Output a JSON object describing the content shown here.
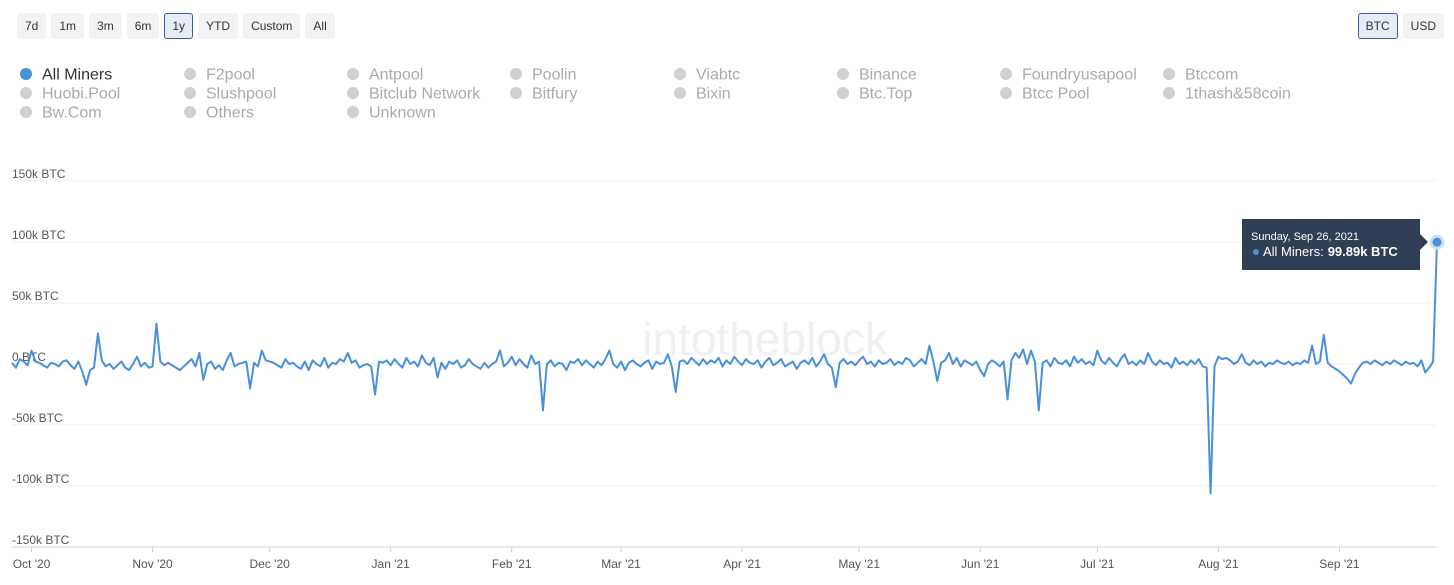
{
  "controls": {
    "ranges": [
      "7d",
      "1m",
      "3m",
      "6m",
      "1y",
      "YTD",
      "Custom",
      "All"
    ],
    "active_range": "1y",
    "units": [
      "BTC",
      "USD"
    ],
    "active_unit": "BTC"
  },
  "chart_data": {
    "type": "line",
    "watermark": "intotheblock",
    "categories": [
      null,
      null,
      null,
      null,
      null,
      "Oct '20",
      null,
      null,
      null,
      null,
      null,
      null,
      null,
      null,
      null,
      null,
      null,
      null,
      null,
      null,
      null,
      null,
      null,
      null,
      null,
      null,
      null,
      null,
      null,
      null,
      null,
      null,
      null,
      null,
      null,
      null,
      "Nov '20",
      null,
      null,
      null,
      null,
      null,
      null,
      null,
      null,
      null,
      null,
      null,
      null,
      null,
      null,
      null,
      null,
      null,
      null,
      null,
      null,
      null,
      null,
      null,
      null,
      null,
      null,
      null,
      null,
      null,
      "Dec '20",
      null,
      null,
      null,
      null,
      null,
      null,
      null,
      null,
      null,
      null,
      null,
      null,
      null,
      null,
      null,
      null,
      null,
      null,
      null,
      null,
      null,
      null,
      null,
      null,
      null,
      null,
      null,
      null,
      null,
      null,
      "Jan '21",
      null,
      null,
      null,
      null,
      null,
      null,
      null,
      null,
      null,
      null,
      null,
      null,
      null,
      null,
      null,
      null,
      null,
      null,
      null,
      null,
      null,
      null,
      null,
      null,
      null,
      null,
      null,
      null,
      null,
      null,
      "Feb '21",
      null,
      null,
      null,
      null,
      null,
      null,
      null,
      null,
      null,
      null,
      null,
      null,
      null,
      null,
      null,
      null,
      null,
      null,
      null,
      null,
      null,
      null,
      null,
      null,
      null,
      null,
      null,
      "Mar '21",
      null,
      null,
      null,
      null,
      null,
      null,
      null,
      null,
      null,
      null,
      null,
      null,
      null,
      null,
      null,
      null,
      null,
      null,
      null,
      null,
      null,
      null,
      null,
      null,
      null,
      null,
      null,
      null,
      null,
      null,
      "Apr '21",
      null,
      null,
      null,
      null,
      null,
      null,
      null,
      null,
      null,
      null,
      null,
      null,
      null,
      null,
      null,
      null,
      null,
      null,
      null,
      null,
      null,
      null,
      null,
      null,
      null,
      null,
      null,
      null,
      null,
      "May '21",
      null,
      null,
      null,
      null,
      null,
      null,
      null,
      null,
      null,
      null,
      null,
      null,
      null,
      null,
      null,
      null,
      null,
      null,
      null,
      null,
      null,
      null,
      null,
      null,
      null,
      null,
      null,
      null,
      null,
      null,
      "Jun '21",
      null,
      null,
      null,
      null,
      null,
      null,
      null,
      null,
      null,
      null,
      null,
      null,
      null,
      null,
      null,
      null,
      null,
      null,
      null,
      null,
      null,
      null,
      null,
      null,
      null,
      null,
      null,
      null,
      null,
      "Jul '21",
      null,
      null,
      null,
      null,
      null,
      null,
      null,
      null,
      null,
      null,
      null,
      null,
      null,
      null,
      null,
      null,
      null,
      null,
      null,
      null,
      null,
      null,
      null,
      null,
      null,
      null,
      null,
      null,
      null,
      null,
      "Aug '21",
      null,
      null,
      null,
      null,
      null,
      null,
      null,
      null,
      null,
      null,
      null,
      null,
      null,
      null,
      null,
      null,
      null,
      null,
      null,
      null,
      null,
      null,
      null,
      null,
      null,
      null,
      null,
      null,
      null,
      null,
      "Sep '21",
      null,
      null,
      null,
      null,
      null,
      null,
      null,
      null,
      null,
      null,
      null,
      null,
      null,
      null,
      null,
      null,
      null,
      null,
      null,
      null,
      null,
      null,
      null,
      null,
      null
    ],
    "series": [
      {
        "name": "All Miners",
        "color": "#4a90d9",
        "values": [
          1000,
          -3000,
          4000,
          2000,
          -1000,
          11000,
          2000,
          1000,
          -1000,
          -3000,
          1000,
          0,
          -2000,
          2000,
          3000,
          -1000,
          -4000,
          2000,
          -6000,
          -17000,
          -5000,
          -3000,
          25000,
          3000,
          -2000,
          0,
          -4000,
          -1000,
          2000,
          -3000,
          -5000,
          0,
          6000,
          -2000,
          1000,
          -3000,
          -2000,
          33000,
          2000,
          -1000,
          1000,
          -1000,
          -3000,
          -5000,
          -2000,
          1000,
          4000,
          -2000,
          9000,
          -13000,
          0,
          2000,
          -4000,
          -1000,
          -5000,
          3000,
          9000,
          -2000,
          0,
          1000,
          2000,
          -20000,
          1000,
          -2000,
          11000,
          3000,
          2000,
          1000,
          -1000,
          -3000,
          4000,
          0,
          1000,
          -2000,
          -4000,
          2000,
          -5000,
          3000,
          0,
          -2000,
          5000,
          -3000,
          1000,
          0,
          4000,
          2000,
          9000,
          1000,
          3000,
          -3000,
          -1000,
          0,
          -2000,
          -25000,
          2000,
          1000,
          3000,
          -1000,
          4000,
          0,
          -3000,
          5000,
          0,
          2000,
          -2000,
          7000,
          1000,
          -1000,
          5000,
          -11000,
          1000,
          -4000,
          2000,
          0,
          3000,
          -3000,
          -1000,
          4000,
          0,
          -2000,
          -4000,
          1000,
          -3000,
          0,
          2000,
          11000,
          -2000,
          1000,
          6000,
          -1000,
          4000,
          0,
          -3000,
          7000,
          0,
          2000,
          -38000,
          0,
          3000,
          -2000,
          1000,
          0,
          -5000,
          2000,
          1000,
          4000,
          -1000,
          3000,
          0,
          -3000,
          2000,
          -1000,
          4000,
          11000,
          0,
          -3000,
          2000,
          -5000,
          1000,
          3000,
          0,
          -2000,
          1000,
          3000,
          -4000,
          2000,
          0,
          1000,
          8000,
          -2000,
          -23000,
          2000,
          3000,
          0,
          5000,
          2000,
          -1000,
          4000,
          0,
          3000,
          1000,
          5000,
          -2000,
          3000,
          0,
          6000,
          2000,
          -1000,
          4000,
          1000,
          0,
          3000,
          -3000,
          2000,
          5000,
          -1000,
          1000,
          4000,
          -2000,
          0,
          2000,
          -4000,
          1000,
          3000,
          0,
          5000,
          -2000,
          2000,
          8000,
          0,
          -3000,
          -19000,
          1000,
          4000,
          0,
          2000,
          -1000,
          3000,
          6000,
          0,
          2000,
          -2000,
          3000,
          0,
          1000,
          4000,
          -1000,
          2000,
          0,
          5000,
          3000,
          -2000,
          1000,
          4000,
          0,
          15000,
          2000,
          -14000,
          1000,
          3000,
          9000,
          0,
          5000,
          -2000,
          3000,
          1000,
          -1000,
          2000,
          -5000,
          -10000,
          0,
          3000,
          1000,
          -2000,
          2000,
          -29000,
          3000,
          9000,
          5000,
          12000,
          0,
          11000,
          2000,
          -38000,
          1000,
          3000,
          -2000,
          5000,
          1000,
          0,
          3000,
          -2000,
          6000,
          1000,
          4000,
          0,
          2000,
          -1000,
          11000,
          3000,
          0,
          5000,
          1000,
          -2000,
          4000,
          8000,
          0,
          2000,
          -1000,
          3000,
          0,
          9000,
          2000,
          -1000,
          3000,
          0,
          1000,
          -3000,
          5000,
          0,
          2000,
          -1000,
          3000,
          0,
          4000,
          -2000,
          -3000,
          -106000,
          -2000,
          6000,
          4000,
          5000,
          3000,
          0,
          2000,
          8000,
          1000,
          -1000,
          3000,
          0,
          2000,
          -2000,
          1000,
          0,
          3000,
          1000,
          0,
          2000,
          -1000,
          1000,
          0,
          3000,
          1000,
          15000,
          0,
          2000,
          24000,
          1000,
          -2000,
          -4000,
          -6000,
          -9000,
          -12000,
          -16000,
          -8000,
          -3000,
          1000,
          2000,
          0,
          3000,
          1000,
          -1000,
          2000,
          0,
          3000,
          1000,
          -1000,
          2000,
          0,
          1000,
          -2000,
          3000,
          -7000,
          -3000,
          2000,
          99890
        ]
      }
    ],
    "hidden_series": [
      "F2pool",
      "Antpool",
      "Poolin",
      "Viabtc",
      "Binance",
      "Foundryusapool",
      "Btccom",
      "Huobi.Pool",
      "Slushpool",
      "Bitclub Network",
      "Bitfury",
      "Bixin",
      "Btc.Top",
      "Btcc Pool",
      "1thash&58coin",
      "Bw.Com",
      "Others",
      "Unknown"
    ],
    "hidden_color": "#d0d0d0",
    "ylim": [
      -150000,
      150000
    ],
    "yticks": [
      {
        "value": -150000,
        "label": "-150k BTC"
      },
      {
        "value": -100000,
        "label": "-100k BTC"
      },
      {
        "value": -50000,
        "label": "-50k BTC"
      },
      {
        "value": 0,
        "label": "0 BTC"
      },
      {
        "value": 50000,
        "label": "50k BTC"
      },
      {
        "value": 100000,
        "label": "100k BTC"
      },
      {
        "value": 150000,
        "label": "150k BTC"
      }
    ],
    "grid": true,
    "tooltip": {
      "date": "Sunday, Sep 26, 2021",
      "label": "All Miners:",
      "value_label": "99.89k BTC"
    }
  }
}
